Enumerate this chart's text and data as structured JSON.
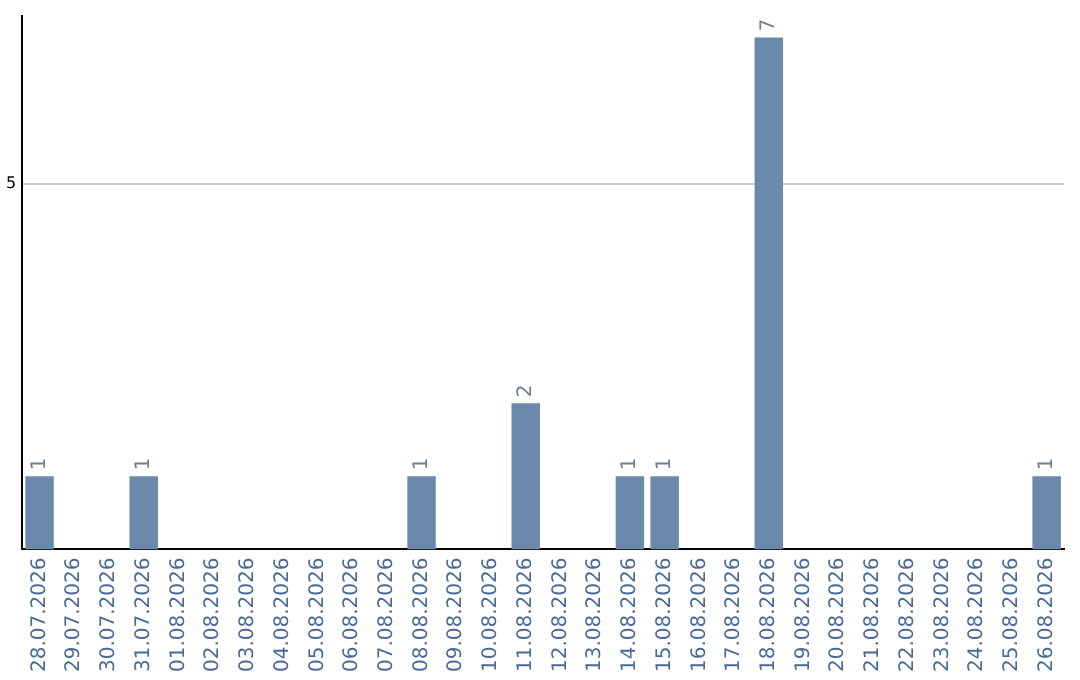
{
  "chart_data": {
    "type": "bar",
    "categories": [
      "28.07.2026",
      "29.07.2026",
      "30.07.2026",
      "31.07.2026",
      "01.08.2026",
      "02.08.2026",
      "03.08.2026",
      "04.08.2026",
      "05.08.2026",
      "06.08.2026",
      "07.08.2026",
      "08.08.2026",
      "09.08.2026",
      "10.08.2026",
      "11.08.2026",
      "12.08.2026",
      "13.08.2026",
      "14.08.2026",
      "15.08.2026",
      "16.08.2026",
      "17.08.2026",
      "18.08.2026",
      "19.08.2026",
      "20.08.2026",
      "21.08.2026",
      "22.08.2026",
      "23.08.2026",
      "24.08.2026",
      "25.08.2026",
      "26.08.2026"
    ],
    "values": [
      1,
      0,
      0,
      1,
      0,
      0,
      0,
      0,
      0,
      0,
      0,
      1,
      0,
      0,
      2,
      0,
      0,
      1,
      1,
      0,
      0,
      7,
      0,
      0,
      0,
      0,
      0,
      0,
      0,
      1
    ],
    "value_labels": [
      "1",
      null,
      null,
      "1",
      null,
      null,
      null,
      null,
      null,
      null,
      null,
      "1",
      null,
      null,
      "2",
      null,
      null,
      "1",
      "1",
      null,
      null,
      "7",
      null,
      null,
      null,
      null,
      null,
      null,
      null,
      "1"
    ],
    "color": "#6b8aab",
    "ylim": [
      0,
      7.3
    ],
    "yticks": [
      5
    ],
    "grid": "y",
    "legend": false
  }
}
